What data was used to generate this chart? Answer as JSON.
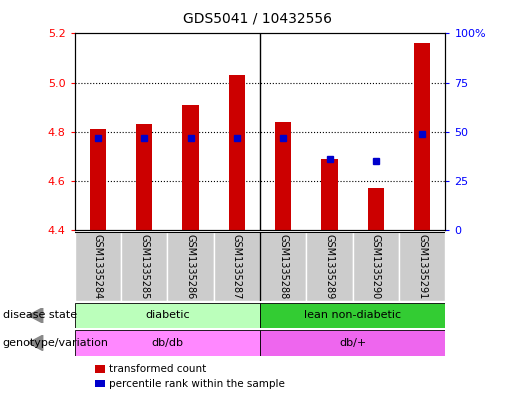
{
  "title": "GDS5041 / 10432556",
  "samples": [
    "GSM1335284",
    "GSM1335285",
    "GSM1335286",
    "GSM1335287",
    "GSM1335288",
    "GSM1335289",
    "GSM1335290",
    "GSM1335291"
  ],
  "transformed_count": [
    4.81,
    4.83,
    4.91,
    5.03,
    4.84,
    4.69,
    4.57,
    5.16
  ],
  "percentile_rank": [
    47,
    47,
    47,
    47,
    47,
    36,
    35,
    49
  ],
  "ylim_left": [
    4.4,
    5.2
  ],
  "ylim_right": [
    0,
    100
  ],
  "yticks_left": [
    4.4,
    4.6,
    4.8,
    5.0,
    5.2
  ],
  "yticks_right": [
    0,
    25,
    50,
    75,
    100
  ],
  "bar_color": "#cc0000",
  "percentile_color": "#0000cc",
  "bar_bottom": 4.4,
  "disease_state": [
    {
      "label": "diabetic",
      "start": 0,
      "end": 4,
      "color": "#bbffbb"
    },
    {
      "label": "lean non-diabetic",
      "start": 4,
      "end": 8,
      "color": "#33cc33"
    }
  ],
  "genotype": [
    {
      "label": "db/db",
      "start": 0,
      "end": 4,
      "color": "#ff88ff"
    },
    {
      "label": "db/+",
      "start": 4,
      "end": 8,
      "color": "#ee66ee"
    }
  ],
  "disease_state_label": "disease state",
  "genotype_label": "genotype/variation",
  "legend_items": [
    {
      "color": "#cc0000",
      "label": "transformed count"
    },
    {
      "color": "#0000cc",
      "label": "percentile rank within the sample"
    }
  ],
  "sample_bg": "#cccccc",
  "plot_bg": "#ffffff",
  "n_samples": 8,
  "bar_width": 0.35
}
